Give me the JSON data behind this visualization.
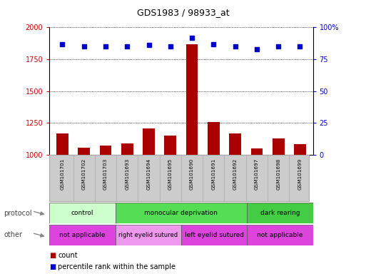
{
  "title": "GDS1983 / 98933_at",
  "samples": [
    "GSM101701",
    "GSM101702",
    "GSM101703",
    "GSM101693",
    "GSM101694",
    "GSM101695",
    "GSM101690",
    "GSM101691",
    "GSM101692",
    "GSM101697",
    "GSM101698",
    "GSM101699"
  ],
  "counts": [
    1165,
    1055,
    1075,
    1090,
    1205,
    1150,
    1870,
    1260,
    1165,
    1050,
    1130,
    1085
  ],
  "percentiles": [
    87,
    85,
    85,
    85,
    86,
    85,
    92,
    87,
    85,
    83,
    85,
    85
  ],
  "bar_color": "#aa0000",
  "dot_color": "#0000cc",
  "ylim_left": [
    1000,
    2000
  ],
  "ylim_right": [
    0,
    100
  ],
  "yticks_left": [
    1000,
    1250,
    1500,
    1750,
    2000
  ],
  "yticks_right": [
    0,
    25,
    50,
    75,
    100
  ],
  "protocol_groups": [
    {
      "label": "control",
      "start": 0,
      "end": 3,
      "color": "#ccffcc"
    },
    {
      "label": "monocular deprivation",
      "start": 3,
      "end": 9,
      "color": "#55dd55"
    },
    {
      "label": "dark rearing",
      "start": 9,
      "end": 12,
      "color": "#44cc44"
    }
  ],
  "other_groups": [
    {
      "label": "not applicable",
      "start": 0,
      "end": 3,
      "color": "#dd44dd"
    },
    {
      "label": "right eyelid sutured",
      "start": 3,
      "end": 6,
      "color": "#ee99ee"
    },
    {
      "label": "left eyelid sutured",
      "start": 6,
      "end": 9,
      "color": "#dd44dd"
    },
    {
      "label": "not applicable",
      "start": 9,
      "end": 12,
      "color": "#dd44dd"
    }
  ],
  "legend_count_label": "count",
  "legend_pct_label": "percentile rank within the sample",
  "protocol_label": "protocol",
  "other_label": "other",
  "bg_color": "#ffffff",
  "tick_label_color_left": "#cc0000",
  "tick_label_color_right": "#0000cc",
  "grid_color": "#000000",
  "bar_baseline": 1000,
  "label_bg_color": "#cccccc",
  "label_edge_color": "#aaaaaa"
}
